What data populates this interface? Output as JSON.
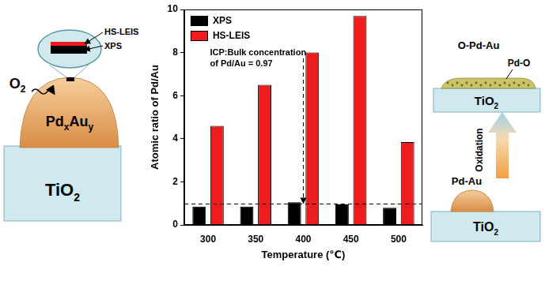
{
  "chart_data": {
    "type": "bar",
    "categories": [
      "300",
      "350",
      "400",
      "450",
      "500"
    ],
    "series": [
      {
        "name": "XPS",
        "color": "#000000",
        "values": [
          0.85,
          0.85,
          1.05,
          0.95,
          0.8
        ]
      },
      {
        "name": "HS-LEIS",
        "color": "#ee1c1c",
        "values": [
          4.6,
          6.5,
          8,
          9.7,
          3.85
        ]
      }
    ],
    "x_label": "Temperature (℃)",
    "y_label": "Atomic ratio of Pd/Au",
    "ylim": [
      0,
      10
    ],
    "yticks": [
      0,
      2,
      4,
      6,
      8,
      10
    ],
    "grid": false,
    "legend": "upper left",
    "annotations": [
      {
        "text": [
          "ICP:Bulk concentration",
          "of Pd/Au = 0.97"
        ],
        "value": 0.97,
        "category": "400"
      }
    ]
  },
  "left_diagram": {
    "gas": [
      "O",
      "2"
    ],
    "particle": [
      "Pd",
      "x",
      "Au",
      "y"
    ],
    "support": [
      "TiO",
      "2"
    ],
    "probes": [
      "HS-LEIS",
      "XPS"
    ]
  },
  "right_diagram": {
    "before": {
      "particle": "Pd-Au",
      "support": [
        "TiO",
        "2"
      ]
    },
    "process": "Oxidation",
    "after": {
      "surface": "O-Pd-Au",
      "oxide": "Pd-O",
      "support": [
        "TiO",
        "2"
      ]
    }
  }
}
